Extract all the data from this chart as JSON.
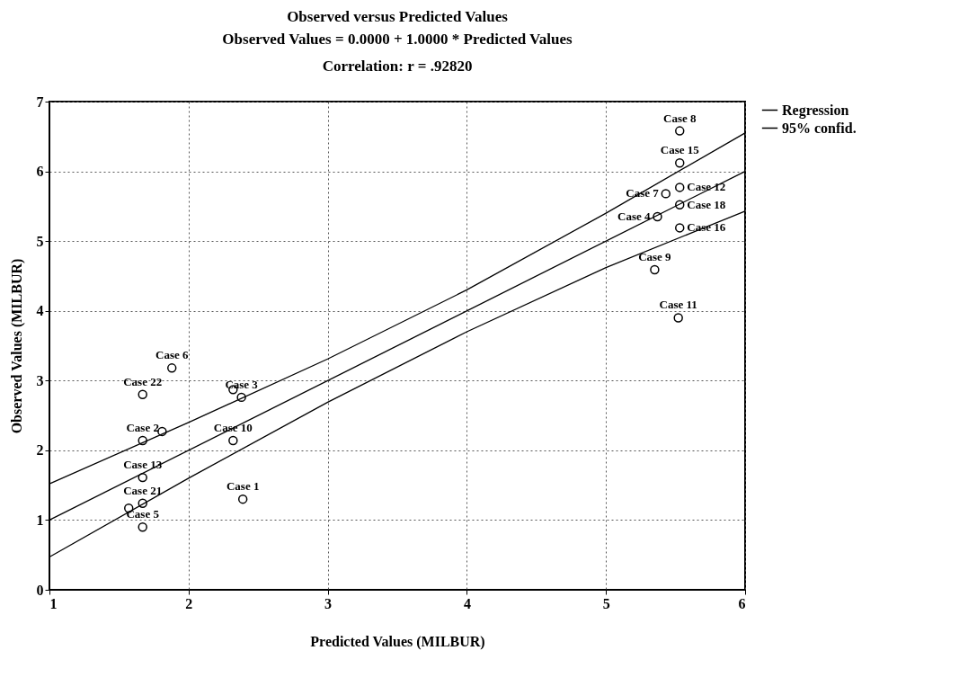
{
  "chart_data": {
    "type": "scatter",
    "title": "Observed versus Predicted Values",
    "subtitle": "Observed Values = 0.0000 + 1.0000 * Predicted Values\nCorrelation: r = .92820",
    "xlabel": "Predicted Values (MILBUR)",
    "ylabel": "Observed Values (MILBUR)",
    "x": [
      1.88,
      1.67,
      2.38,
      2.32,
      1.67,
      1.81,
      2.32,
      1.67,
      1.67,
      1.57,
      1.67,
      2.39,
      5.53,
      5.53,
      5.53,
      5.43,
      5.53,
      5.37,
      5.53,
      5.35,
      5.52
    ],
    "series": [
      {
        "color": "#000000",
        "marker": "circle",
        "values": [
          3.18,
          2.8,
          2.76,
          2.87,
          2.14,
          2.27,
          2.14,
          1.61,
          1.24,
          1.17,
          0.9,
          1.3,
          6.58,
          6.12,
          5.77,
          5.68,
          5.52,
          5.35,
          5.19,
          4.59,
          3.9
        ]
      },
      {
        "type": "line",
        "name": "Regression",
        "color": "#000000",
        "x": [
          1,
          6
        ],
        "values": [
          1,
          6
        ]
      },
      {
        "type": "line",
        "name": "95% confid.",
        "color": "#000000",
        "x": [
          1,
          2,
          3,
          4,
          5,
          6
        ],
        "values": [
          1.52,
          2.4,
          3.31,
          4.3,
          5.4,
          6.55
        ]
      },
      {
        "type": "line",
        "color": "#000000",
        "x": [
          1,
          2,
          3,
          4,
          5,
          6
        ],
        "values": [
          0.47,
          1.6,
          2.69,
          3.7,
          4.62,
          5.43
        ]
      }
    ],
    "annotations": [
      {
        "text": "Case 6",
        "x": 1.88,
        "y": 3.18
      },
      {
        "text": "Case 22",
        "x": 1.67,
        "y": 2.8
      },
      {
        "text": "Case 3",
        "x": 2.38,
        "y": 2.76
      },
      {
        "text": "Case 2",
        "x": 1.67,
        "y": 2.14
      },
      {
        "text": "Case 10",
        "x": 2.32,
        "y": 2.14
      },
      {
        "text": "Case 13",
        "x": 1.67,
        "y": 1.61
      },
      {
        "text": "Case 21",
        "x": 1.67,
        "y": 1.24
      },
      {
        "text": "Case 5",
        "x": 1.67,
        "y": 0.9
      },
      {
        "text": "Case 1",
        "x": 2.39,
        "y": 1.3
      },
      {
        "text": "Case 8",
        "x": 5.53,
        "y": 6.58
      },
      {
        "text": "Case 15",
        "x": 5.53,
        "y": 6.12
      },
      {
        "text": "Case 7",
        "x": 5.43,
        "y": 5.68
      },
      {
        "text": "Case 12",
        "x": 5.53,
        "y": 5.77
      },
      {
        "text": "Case 18",
        "x": 5.53,
        "y": 5.52
      },
      {
        "text": "Case 4",
        "x": 5.37,
        "y": 5.35
      },
      {
        "text": "Case 16",
        "x": 5.53,
        "y": 5.19
      },
      {
        "text": "Case 9",
        "x": 5.35,
        "y": 4.59
      },
      {
        "text": "Case 11",
        "x": 5.52,
        "y": 3.9
      }
    ],
    "xlim": [
      1,
      6
    ],
    "xticks": [
      1,
      2,
      3,
      4,
      5,
      6
    ],
    "ylim": [
      0,
      7
    ],
    "yticks": [
      0,
      1,
      2,
      3,
      4,
      5,
      6,
      7
    ],
    "grid": true,
    "line_style": "solid",
    "legend": "right"
  }
}
